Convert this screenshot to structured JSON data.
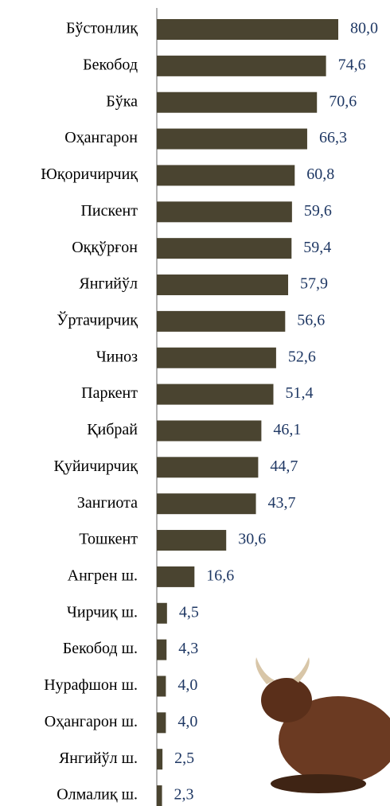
{
  "chart_data": {
    "type": "bar",
    "orientation": "horizontal",
    "categories": [
      "Бўстонлиқ",
      "Бекобод",
      "Бўка",
      "Оҳангарон",
      "Юқоричирчиқ",
      "Пискент",
      "Оққўрғон",
      "Янгийўл",
      "Ўртачирчиқ",
      "Чиноз",
      "Паркент",
      "Қибрай",
      "Қуйичирчиқ",
      "Зангиота",
      "Тошкент",
      "Ангрен ш.",
      "Чирчиқ ш.",
      "Бекобод ш.",
      "Нурафшон ш.",
      "Оҳангарон ш.",
      "Янгийўл ш.",
      "Олмалиқ ш."
    ],
    "values": [
      80.0,
      74.6,
      70.6,
      66.3,
      60.8,
      59.6,
      59.4,
      57.9,
      56.6,
      52.6,
      51.4,
      46.1,
      44.7,
      43.7,
      30.6,
      16.6,
      4.5,
      4.3,
      4.0,
      4.0,
      2.5,
      2.3
    ],
    "value_labels": [
      "80,0",
      "74,6",
      "70,6",
      "66,3",
      "60,8",
      "59,6",
      "59,4",
      "57,9",
      "56,6",
      "52,6",
      "51,4",
      "46,1",
      "44,7",
      "43,7",
      "30,6",
      "16,6",
      "4,5",
      "4,3",
      "4,0",
      "4,0",
      "2,5",
      "2,3"
    ],
    "color": "#4a4430",
    "label_color": "#1f3864"
  }
}
